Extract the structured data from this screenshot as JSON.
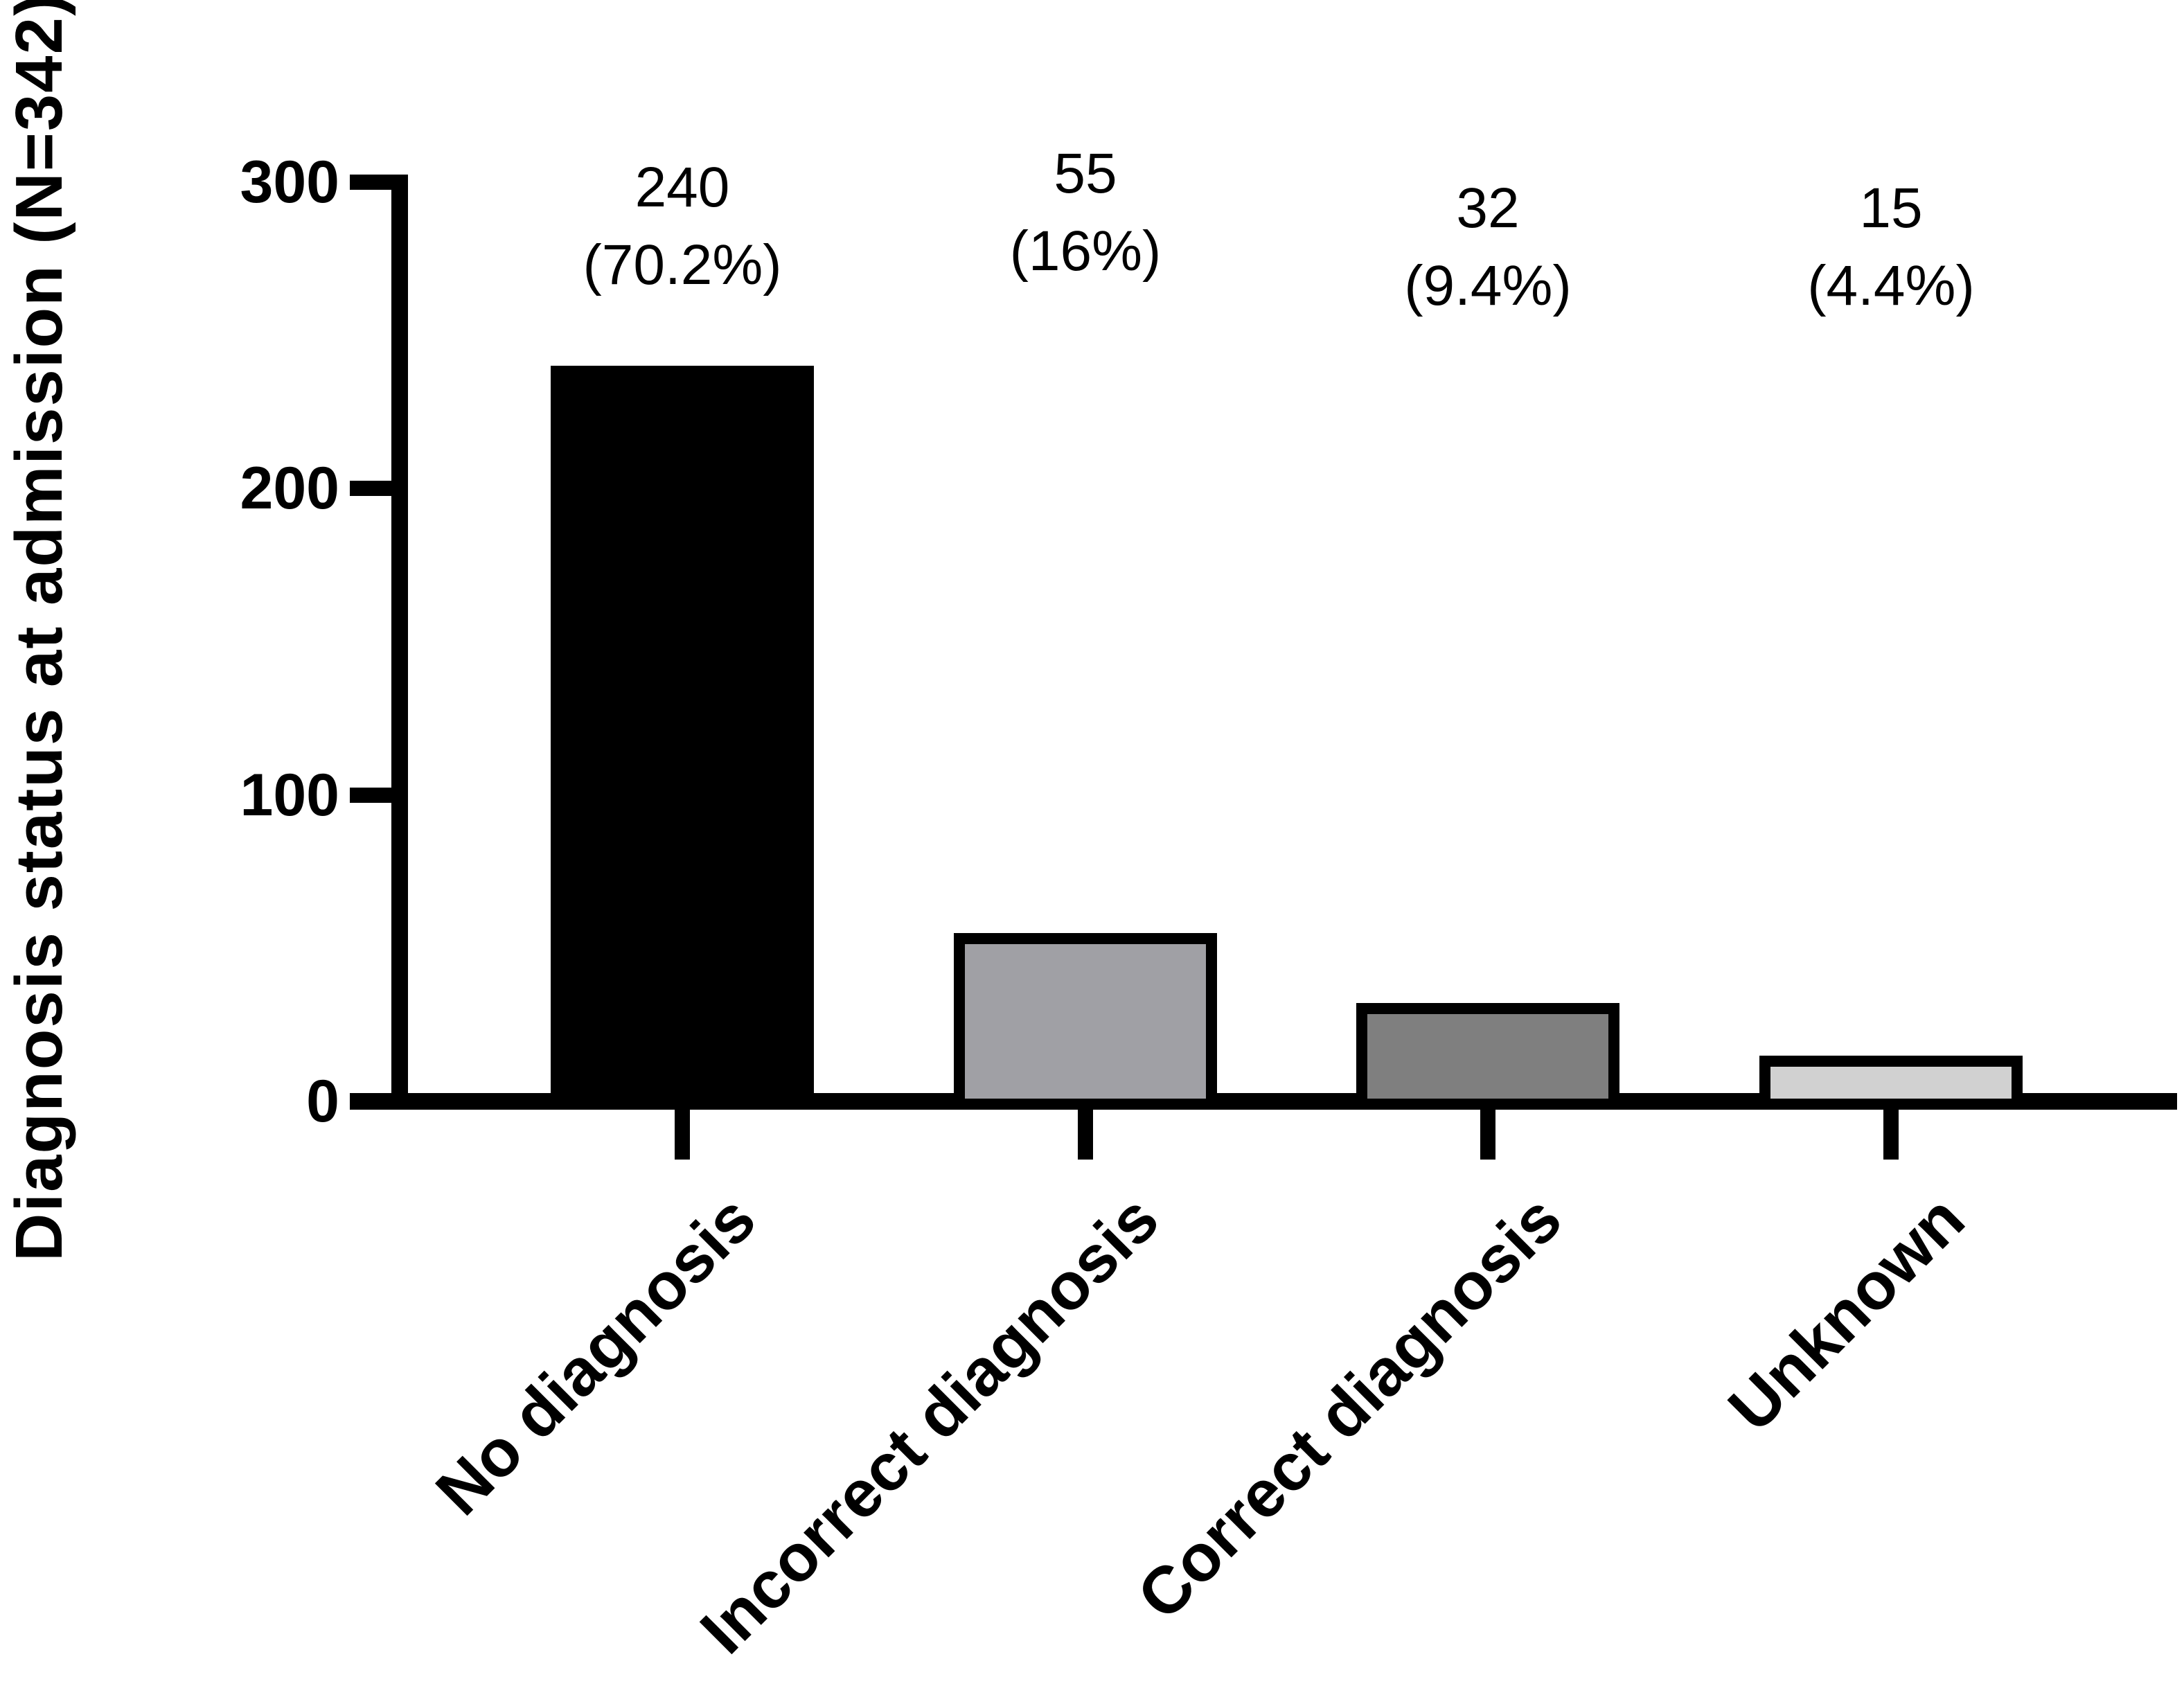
{
  "chart_data": {
    "type": "bar",
    "title": "",
    "ylabel": "Diagnosis status at admission (N=342)",
    "xlabel": "",
    "categories": [
      "No diagnosis",
      "Incorrect diagnosis",
      "Correct diagnosis",
      "Unknown"
    ],
    "values": [
      240,
      55,
      32,
      15
    ],
    "value_labels": [
      "240",
      "55",
      "32",
      "15"
    ],
    "percent_labels": [
      "(70.2%)",
      "(16%)",
      "(9.4%)",
      "(4.4%)"
    ],
    "bar_colors": [
      "#000000",
      "#a0a0a5",
      "#7f7f7f",
      "#d1d1d1"
    ],
    "bar_border_color": "#000000",
    "axis_color": "#000000",
    "background": "#ffffff",
    "yticks": [
      "0",
      "100",
      "200",
      "300"
    ],
    "ytick_values": [
      0,
      100,
      200,
      300
    ],
    "ylim": [
      0,
      300
    ],
    "grid": false,
    "legend": null
  }
}
